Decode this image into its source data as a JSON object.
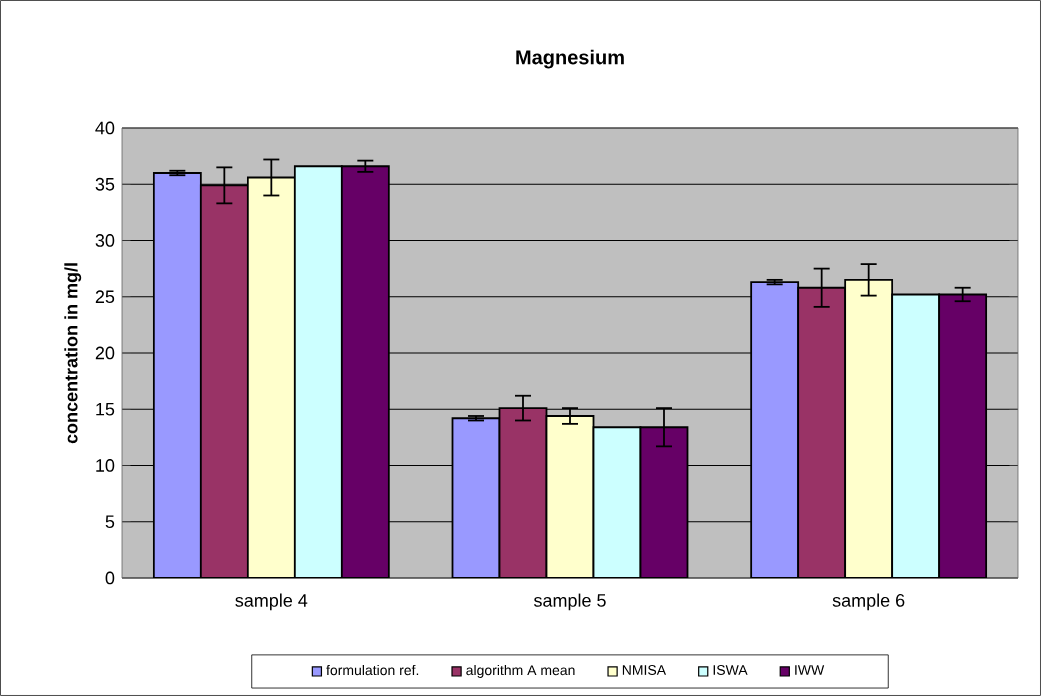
{
  "chart_data": {
    "type": "bar",
    "title": "Magnesium",
    "ylabel": "concentration in mg/l",
    "categories": [
      "sample 4",
      "sample 5",
      "sample 6"
    ],
    "series": [
      {
        "name": "formulation ref.",
        "color": "#9999ff",
        "values": [
          36.0,
          14.2,
          26.3
        ],
        "errors": [
          0.2,
          0.2,
          0.2
        ]
      },
      {
        "name": "algorithm A mean",
        "color": "#993366",
        "values": [
          34.9,
          15.1,
          25.8
        ],
        "errors": [
          1.6,
          1.1,
          1.7
        ]
      },
      {
        "name": "NMISA",
        "color": "#ffffcc",
        "values": [
          35.6,
          14.4,
          26.5
        ],
        "errors": [
          1.6,
          0.7,
          1.4
        ]
      },
      {
        "name": "ISWA",
        "color": "#ccffff",
        "values": [
          36.6,
          13.4,
          25.2
        ]
      },
      {
        "name": "IWW",
        "color": "#660066",
        "values": [
          36.6,
          13.4,
          25.2
        ],
        "errors": [
          0.5,
          1.7,
          0.6
        ]
      }
    ],
    "ylim": [
      0,
      40
    ],
    "yticks": [
      0,
      5,
      10,
      15,
      20,
      25,
      30,
      35,
      40
    ],
    "grid": "y",
    "legend": "bottom"
  }
}
